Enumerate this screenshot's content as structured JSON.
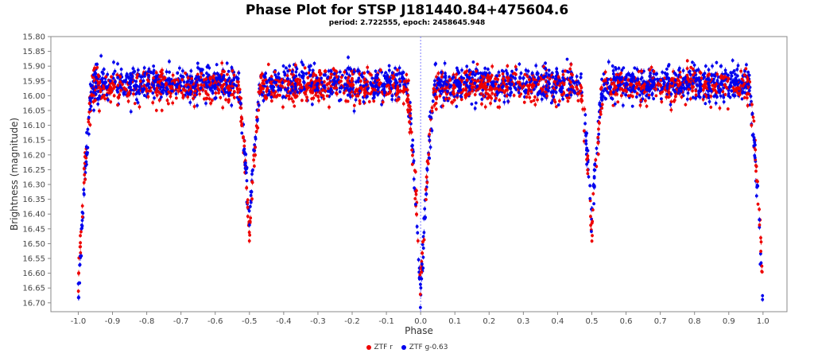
{
  "chart_data": {
    "type": "scatter",
    "title": "Phase Plot for STSP J181440.84+475604.6",
    "subtitle": "period: 2.722555, epoch: 2458645.948",
    "xlabel": "Phase",
    "ylabel": "Brightness (magnitude)",
    "xlim": [
      -1.08,
      1.07
    ],
    "ylim": [
      16.73,
      15.8
    ],
    "y_inverted": true,
    "x_ticks": [
      "-1.0",
      "-0.9",
      "-0.8",
      "-0.7",
      "-0.6",
      "-0.5",
      "-0.4",
      "-0.3",
      "-0.2",
      "-0.1",
      "0.0",
      "0.1",
      "0.2",
      "0.3",
      "0.4",
      "0.5",
      "0.6",
      "0.7",
      "0.8",
      "0.9",
      "1.0"
    ],
    "y_ticks": [
      "15.80",
      "15.85",
      "15.90",
      "15.95",
      "16.00",
      "16.05",
      "16.10",
      "16.15",
      "16.20",
      "16.25",
      "16.30",
      "16.35",
      "16.40",
      "16.45",
      "16.50",
      "16.55",
      "16.60",
      "16.65",
      "16.70"
    ],
    "reference_line_x": 0.0,
    "legend_position": "bottom-center",
    "series": [
      {
        "name": "ZTF r",
        "color": "#ee0000",
        "light_curve": {
          "out_of_eclipse": [
            [
              -0.97,
              15.98
            ],
            [
              -0.9,
              15.97
            ],
            [
              -0.8,
              15.97
            ],
            [
              -0.7,
              15.97
            ],
            [
              -0.6,
              15.96
            ],
            [
              -0.55,
              15.97
            ],
            [
              -0.46,
              15.97
            ],
            [
              -0.4,
              15.97
            ],
            [
              -0.3,
              15.96
            ],
            [
              -0.2,
              15.96
            ],
            [
              -0.1,
              15.97
            ],
            [
              -0.03,
              15.97
            ],
            [
              0.03,
              15.98
            ],
            [
              0.1,
              15.97
            ],
            [
              0.2,
              15.97
            ],
            [
              0.3,
              15.97
            ],
            [
              0.4,
              15.96
            ],
            [
              0.45,
              15.97
            ],
            [
              0.54,
              15.97
            ],
            [
              0.6,
              15.97
            ],
            [
              0.7,
              15.96
            ],
            [
              0.8,
              15.96
            ],
            [
              0.9,
              15.97
            ],
            [
              0.96,
              15.97
            ]
          ],
          "primary_minimum": [
            [
              -1.0,
              16.65
            ],
            [
              -0.98,
              16.15
            ],
            [
              0.0,
              16.63
            ],
            [
              -0.01,
              16.4
            ],
            [
              0.01,
              16.4
            ],
            [
              1.0,
              16.64
            ],
            [
              0.98,
              16.2
            ]
          ],
          "secondary_minimum": [
            [
              -0.5,
              16.47
            ],
            [
              -0.52,
              16.2
            ],
            [
              -0.48,
              16.2
            ],
            [
              0.5,
              16.47
            ],
            [
              0.48,
              16.2
            ],
            [
              0.52,
              16.2
            ]
          ]
        }
      },
      {
        "name": "ZTF g-0.63",
        "color": "#0000ee",
        "light_curve": {
          "out_of_eclipse": [
            [
              -0.97,
              15.97
            ],
            [
              -0.9,
              15.96
            ],
            [
              -0.8,
              15.96
            ],
            [
              -0.7,
              15.96
            ],
            [
              -0.6,
              15.95
            ],
            [
              -0.55,
              15.96
            ],
            [
              -0.46,
              15.96
            ],
            [
              -0.4,
              15.96
            ],
            [
              -0.3,
              15.95
            ],
            [
              -0.2,
              15.95
            ],
            [
              -0.1,
              15.96
            ],
            [
              -0.03,
              15.96
            ],
            [
              0.03,
              15.97
            ],
            [
              0.1,
              15.96
            ],
            [
              0.2,
              15.96
            ],
            [
              0.3,
              15.96
            ],
            [
              0.4,
              15.95
            ],
            [
              0.45,
              15.96
            ],
            [
              0.54,
              15.96
            ],
            [
              0.6,
              15.96
            ],
            [
              0.7,
              15.95
            ],
            [
              0.8,
              15.95
            ],
            [
              0.9,
              15.96
            ],
            [
              0.96,
              15.96
            ]
          ],
          "primary_minimum": [
            [
              -1.0,
              16.71
            ],
            [
              -0.98,
              16.15
            ],
            [
              0.0,
              16.71
            ],
            [
              -0.01,
              16.4
            ],
            [
              0.01,
              16.4
            ],
            [
              1.0,
              16.71
            ],
            [
              0.98,
              16.2
            ]
          ],
          "secondary_minimum": [
            [
              -0.5,
              16.42
            ],
            [
              -0.52,
              16.2
            ],
            [
              -0.48,
              16.2
            ],
            [
              0.5,
              16.42
            ],
            [
              0.48,
              16.2
            ],
            [
              0.52,
              16.2
            ]
          ]
        }
      }
    ]
  },
  "legend": {
    "items": [
      {
        "label": "ZTF r",
        "color": "#ee0000"
      },
      {
        "label": "ZTF g-0.63",
        "color": "#0000ee"
      }
    ]
  }
}
